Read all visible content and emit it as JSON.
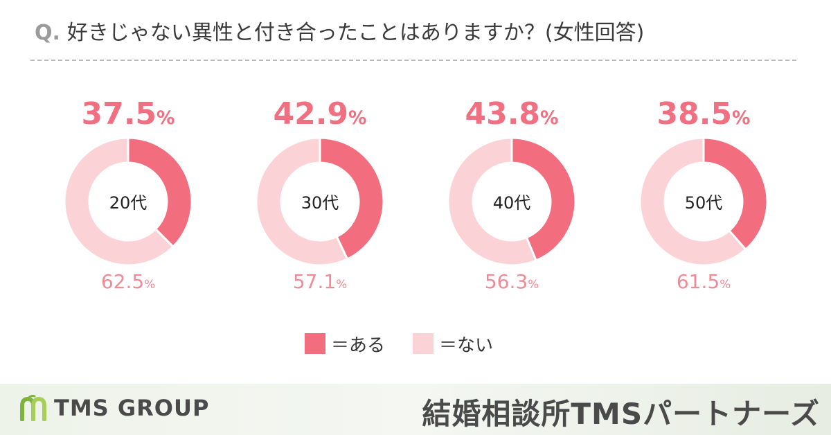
{
  "question": {
    "prefix": "Q.",
    "text": "好きじゃない異性と付き合ったことはありますか？(女性回答)"
  },
  "colors": {
    "yes": "#f26d7d",
    "no": "#fbd3d6",
    "main_pct": "#f06f80",
    "sub_pct": "#f08a96"
  },
  "chart_data": {
    "type": "pie",
    "variant": "donut",
    "categories": [
      "20代",
      "30代",
      "40代",
      "50代"
    ],
    "series": [
      {
        "name": "＝ある",
        "values": [
          37.5,
          42.9,
          43.8,
          38.5
        ]
      },
      {
        "name": "＝ない",
        "values": [
          62.5,
          57.1,
          56.3,
          61.5
        ]
      }
    ],
    "legend_position": "bottom-center"
  },
  "charts": [
    {
      "age": "20代",
      "yes": "37.5",
      "no": "62.5",
      "unit": "%"
    },
    {
      "age": "30代",
      "yes": "42.9",
      "no": "57.1",
      "unit": "%"
    },
    {
      "age": "40代",
      "yes": "43.8",
      "no": "56.3",
      "unit": "%"
    },
    {
      "age": "50代",
      "yes": "38.5",
      "no": "61.5",
      "unit": "%"
    }
  ],
  "legend": {
    "yes_label": "＝ある",
    "no_label": "＝ない"
  },
  "footer": {
    "logo_text": "TMS GROUP",
    "logo_icon": "tms-leaf-logo-icon",
    "brand": "結婚相談所TMSパートナーズ"
  }
}
